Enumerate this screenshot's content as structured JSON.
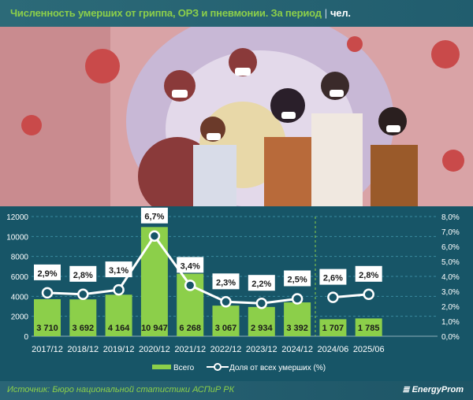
{
  "header": {
    "title": "Численность умерших от гриппа, ОРЗ и пневмонии. За период",
    "unit": "чел."
  },
  "footer": {
    "source": "Источник: Бюро национальной статистики АСПиР РК",
    "logo": "EnergyProm"
  },
  "colors": {
    "bar": "#8ccf4a",
    "line": "#ffffff",
    "background": "#175567",
    "title": "#8ccf4a"
  },
  "chart_data": {
    "type": "bar+line",
    "categories": [
      "2017/12",
      "2018/12",
      "2019/12",
      "2020/12",
      "2021/12",
      "2022/12",
      "2023/12",
      "2024/12",
      "2024/06",
      "2025/06"
    ],
    "series": [
      {
        "name": "Всего",
        "type": "bar",
        "axis": "left",
        "values": [
          3710,
          3692,
          4164,
          10947,
          6268,
          3067,
          2934,
          3392,
          1707,
          1785
        ],
        "labels": [
          "3 710",
          "3 692",
          "4 164",
          "10 947",
          "6 268",
          "3 067",
          "2 934",
          "3 392",
          "1 707",
          "1 785"
        ]
      },
      {
        "name": "Доля от всех умерших (%)",
        "type": "line",
        "axis": "right",
        "values": [
          2.9,
          2.8,
          3.1,
          6.7,
          3.4,
          2.3,
          2.2,
          2.5,
          2.6,
          2.8
        ],
        "labels": [
          "2,9%",
          "2,8%",
          "3,1%",
          "6,7%",
          "3,4%",
          "2,3%",
          "2,2%",
          "2,5%",
          "2,6%",
          "2,8%"
        ]
      }
    ],
    "left_axis": {
      "ylim": [
        0,
        12000
      ],
      "ticks": [
        "0",
        "2000",
        "4000",
        "6000",
        "8000",
        "10000",
        "12000"
      ]
    },
    "right_axis": {
      "ylim": [
        0,
        8
      ],
      "ticks": [
        "0,0%",
        "1,0%",
        "2,0%",
        "3,0%",
        "4,0%",
        "5,0%",
        "6,0%",
        "7,0%",
        "8,0%"
      ]
    },
    "grid": "horizontal dashed",
    "legend": "bottom",
    "line_breaks_after": "2024/12"
  }
}
